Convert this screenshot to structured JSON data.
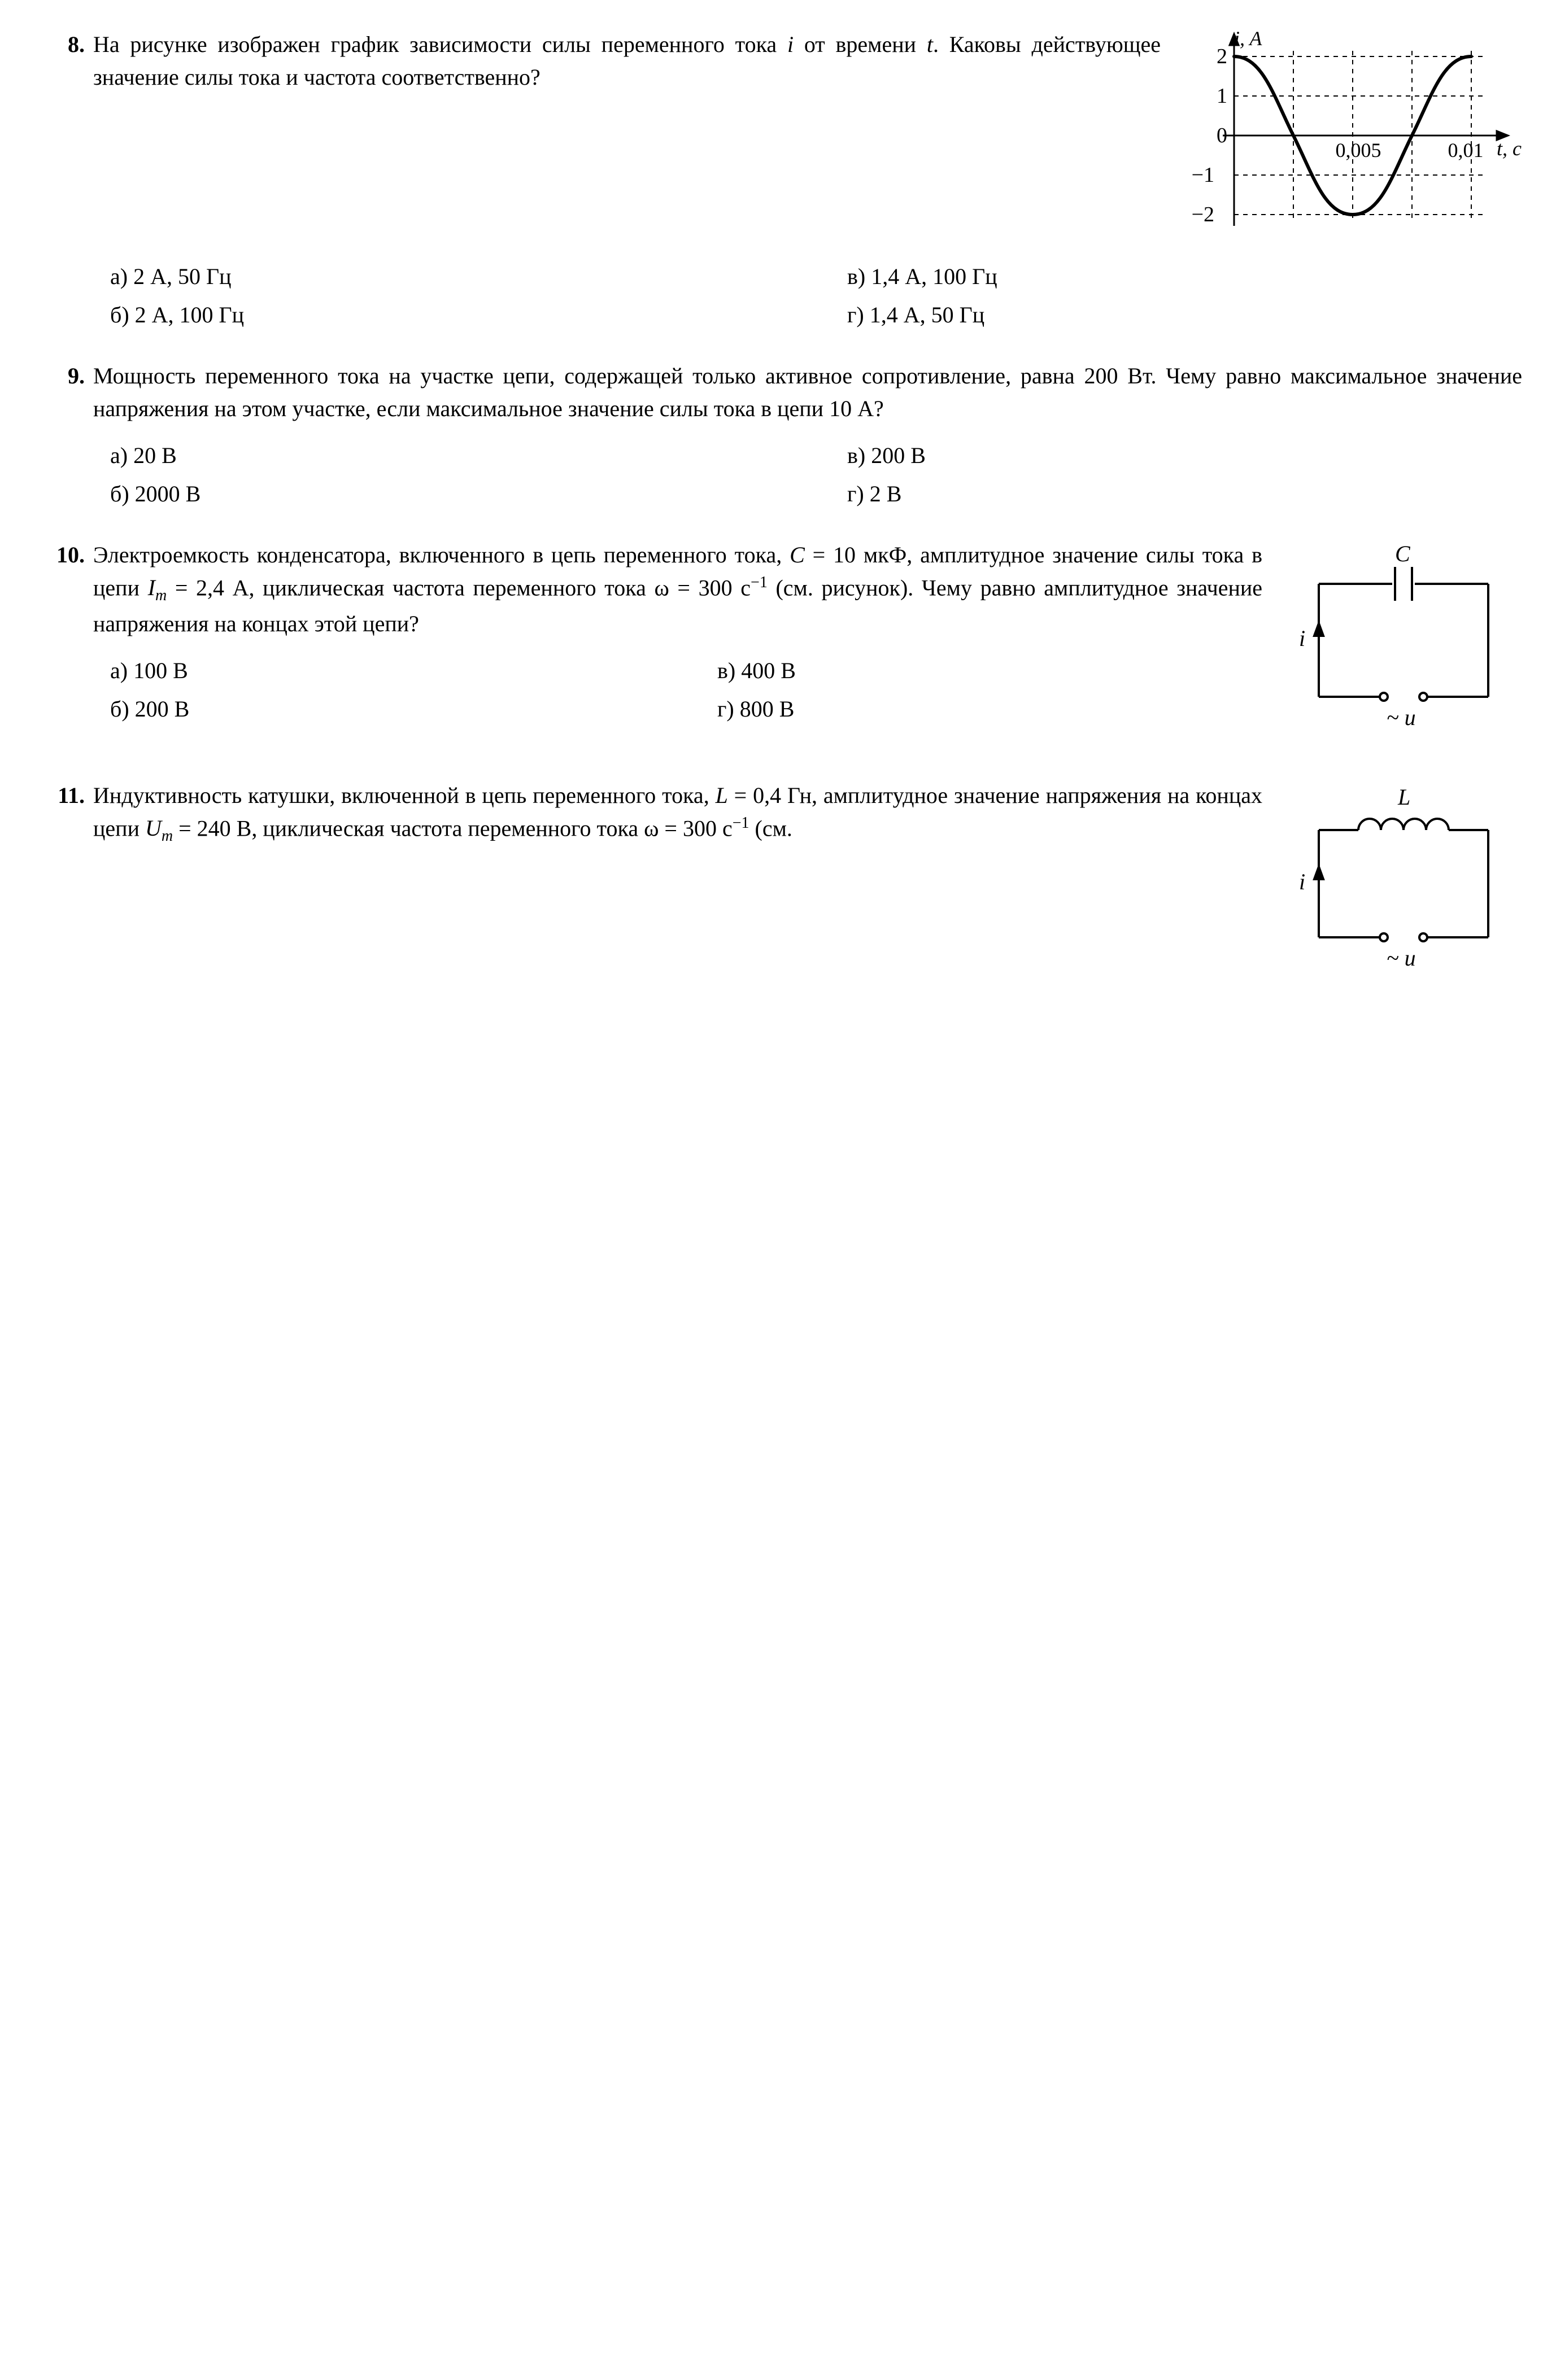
{
  "q8": {
    "num": "8.",
    "text_before_graph": "На рисунке изображен график зависимости силы переменного тока <span class='italic'>i</span> от времени <span class='italic'>t</span>. Каковы действующее значение силы тока и частота соответственно?",
    "answers": {
      "a": "а)  2 А, 50 Гц",
      "b": "б)  2 А, 100 Гц",
      "v": "в)  1,4 А, 100 Гц",
      "g": "г)  1,4 А, 50 Гц"
    },
    "chart": {
      "type": "line",
      "y_label": "i, A",
      "x_label": "t, с",
      "y_ticks": [
        -2,
        -1,
        0,
        1,
        2
      ],
      "x_tick_labels": [
        "0,005",
        "0,01"
      ],
      "x_tick_values": [
        0.005,
        0.01
      ],
      "x_range": [
        0,
        0.011
      ],
      "y_range": [
        -2.5,
        2.5
      ],
      "amplitude": 2,
      "period": 0.01,
      "phase": "cosine",
      "line_color": "#000000",
      "line_width": 4,
      "axis_color": "#000000",
      "grid_dash": "6,6",
      "grid_color": "#000000",
      "background": "#ffffff"
    }
  },
  "q9": {
    "num": "9.",
    "text": "Мощность переменного тока на участке цепи, содержащей только активное сопротивление, равна 200 Вт. Чему равно максимальное значение напряжения на этом участке, если максимальное значение силы тока в цепи 10 А?",
    "answers": {
      "a": "а)  20 В",
      "b": "б)  2000 В",
      "v": "в)  200 В",
      "g": "г)  2 В"
    }
  },
  "q10": {
    "num": "10.",
    "text": "Электроемкость конденсатора, включенного в цепь переменного тока, <span class='italic'>C</span> = 10 мкФ, амплитудное значение силы тока в цепи <span class='italic'>I<sub>m</sub></span> = 2,4 А, циклическая частота переменного тока ω = 300 с<sup>−1</sup> (см. рисунок). Чему равно амплитудное значение напряжения на концах этой цепи?",
    "answers": {
      "a": "а)  100 В",
      "b": "б)  200 В",
      "v": "в)  400 В",
      "g": "г)  800 В"
    },
    "circuit": {
      "type": "circuit",
      "element": "capacitor",
      "element_label": "C",
      "current_label": "i",
      "source_label": "~ u",
      "line_color": "#000000",
      "line_width": 3,
      "font_style": "italic"
    }
  },
  "q11": {
    "num": "11.",
    "text": "Индуктивность катушки, включенной в цепь переменного тока, <span class='italic'>L</span> = 0,4 Гн, амплитудное значение напряжения на концах цепи <span class='italic'>U<sub>m</sub></span> = 240 В, циклическая частота переменного тока ω = 300 с<sup>−1</sup> (см.",
    "circuit": {
      "type": "circuit",
      "element": "inductor",
      "element_label": "L",
      "current_label": "i",
      "source_label": "~ u",
      "line_color": "#000000",
      "line_width": 3,
      "font_style": "italic"
    }
  }
}
